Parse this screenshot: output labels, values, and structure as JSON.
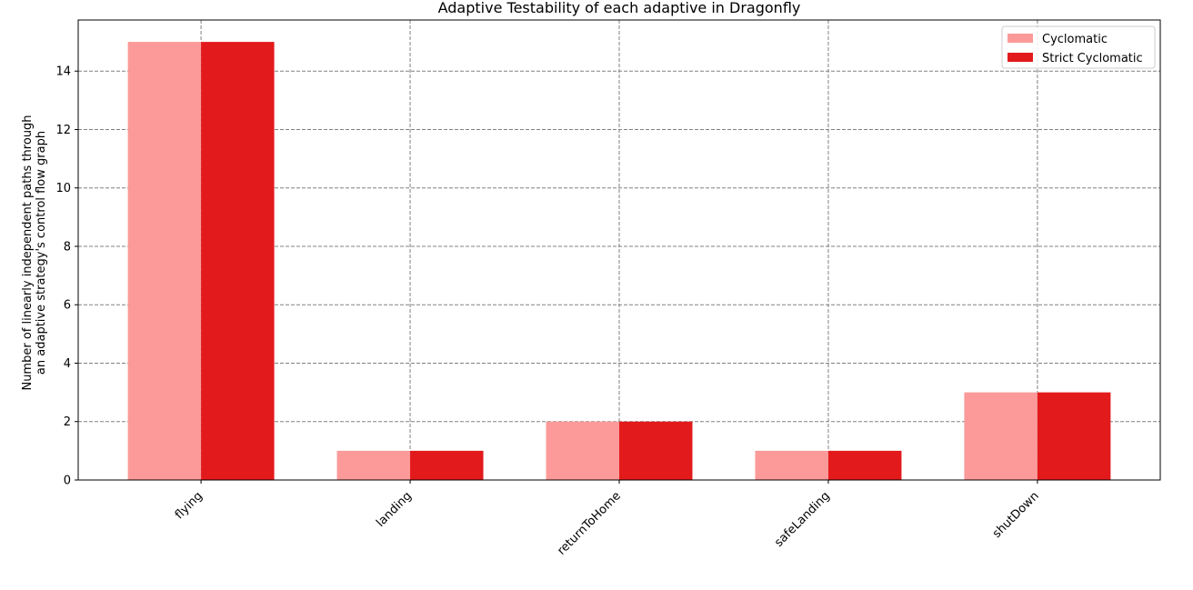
{
  "chart_data": {
    "type": "bar",
    "title": "Adaptive Testability of each adaptive in Dragonfly",
    "xlabel": "",
    "ylabel_lines": [
      "Number of linearly independent paths through",
      "an adaptive strategy's control flow graph"
    ],
    "categories": [
      "flying",
      "landing",
      "returnToHome",
      "safeLanding",
      "shutDown"
    ],
    "series": [
      {
        "name": "Cyclomatic",
        "values": [
          15,
          1,
          2,
          1,
          3
        ],
        "color": "#fb9a99"
      },
      {
        "name": "Strict Cyclomatic",
        "values": [
          15,
          1,
          2,
          1,
          3
        ],
        "color": "#e31a1c"
      }
    ],
    "yticks": [
      0,
      2,
      4,
      6,
      8,
      10,
      12,
      14
    ],
    "ylim": [
      0,
      15.75
    ],
    "grid": true,
    "legend_position": "top-right"
  }
}
